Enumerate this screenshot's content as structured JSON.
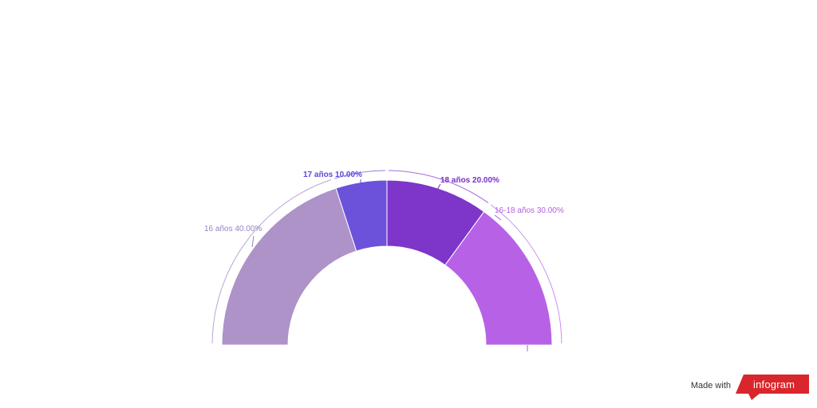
{
  "chart_data": {
    "type": "pie",
    "variant": "semi-donut",
    "title": "",
    "slices": [
      {
        "name": "16 años",
        "value": 40.0,
        "label": "16 años 40.00%",
        "color": "#ad93c8"
      },
      {
        "name": "17 años",
        "value": 10.0,
        "label": "17 años 10.00%",
        "color": "#6c52db"
      },
      {
        "name": "18 años",
        "value": 20.0,
        "label": "18 años 20.00%",
        "color": "#7e35c9"
      },
      {
        "name": "16-18 años",
        "value": 30.0,
        "label": "16-18 años 30.00%",
        "color": "#b762e6"
      }
    ],
    "label_colors": [
      "#9a80c6",
      "#5c48d8",
      "#7a2fc7",
      "#b35ee4"
    ]
  },
  "footer": {
    "made_with": "Made with",
    "brand": "infogram",
    "brand_color": "#d9262c"
  }
}
